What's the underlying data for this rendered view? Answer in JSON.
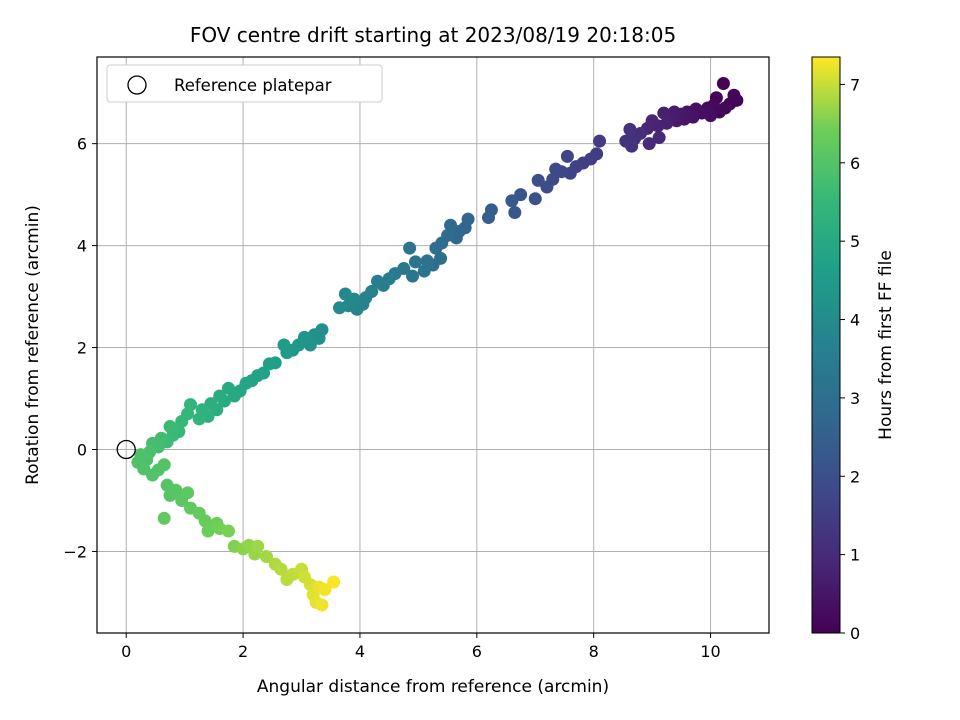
{
  "chart_data": {
    "type": "scatter",
    "title": "FOV centre drift starting at 2023/08/19 20:18:05",
    "xlabel": "Angular distance from reference (arcmin)",
    "ylabel": "Rotation from reference (arcmin)",
    "xlim": [
      -0.5,
      11.0
    ],
    "ylim": [
      -3.6,
      7.7
    ],
    "xticks": [
      0,
      2,
      4,
      6,
      8,
      10
    ],
    "yticks": [
      -2,
      0,
      2,
      4,
      6
    ],
    "grid": true,
    "legend": {
      "position": "top-left",
      "entries": [
        "Reference platepar"
      ]
    },
    "reference_point": {
      "x": 0,
      "y": 0
    },
    "colorbar": {
      "label": "Hours from first FF file",
      "range": [
        0,
        7.35
      ],
      "ticks": [
        0,
        1,
        2,
        3,
        4,
        5,
        6,
        7
      ],
      "colormap": "viridis"
    },
    "points": [
      {
        "x": 10.22,
        "y": 7.18,
        "h": 0.02
      },
      {
        "x": 10.45,
        "y": 6.85,
        "h": 0.05
      },
      {
        "x": 10.33,
        "y": 6.78,
        "h": 0.08
      },
      {
        "x": 10.1,
        "y": 6.9,
        "h": 0.1
      },
      {
        "x": 10.4,
        "y": 6.95,
        "h": 0.12
      },
      {
        "x": 10.25,
        "y": 6.7,
        "h": 0.15
      },
      {
        "x": 10.05,
        "y": 6.75,
        "h": 0.18
      },
      {
        "x": 10.15,
        "y": 6.62,
        "h": 0.2
      },
      {
        "x": 9.95,
        "y": 6.7,
        "h": 0.25
      },
      {
        "x": 9.85,
        "y": 6.6,
        "h": 0.3
      },
      {
        "x": 10.0,
        "y": 6.55,
        "h": 0.33
      },
      {
        "x": 9.75,
        "y": 6.68,
        "h": 0.36
      },
      {
        "x": 9.7,
        "y": 6.52,
        "h": 0.4
      },
      {
        "x": 9.6,
        "y": 6.62,
        "h": 0.45
      },
      {
        "x": 9.55,
        "y": 6.48,
        "h": 0.5
      },
      {
        "x": 9.5,
        "y": 6.58,
        "h": 0.55
      },
      {
        "x": 9.42,
        "y": 6.45,
        "h": 0.6
      },
      {
        "x": 9.38,
        "y": 6.62,
        "h": 0.64
      },
      {
        "x": 9.3,
        "y": 6.5,
        "h": 0.68
      },
      {
        "x": 9.2,
        "y": 6.6,
        "h": 0.72
      },
      {
        "x": 9.25,
        "y": 6.4,
        "h": 0.76
      },
      {
        "x": 9.1,
        "y": 6.35,
        "h": 0.8
      },
      {
        "x": 9.0,
        "y": 6.45,
        "h": 0.85
      },
      {
        "x": 8.92,
        "y": 6.3,
        "h": 0.9
      },
      {
        "x": 9.12,
        "y": 6.12,
        "h": 0.95
      },
      {
        "x": 8.95,
        "y": 6.0,
        "h": 1.0
      },
      {
        "x": 8.8,
        "y": 6.2,
        "h": 1.05
      },
      {
        "x": 8.7,
        "y": 6.1,
        "h": 1.1
      },
      {
        "x": 8.62,
        "y": 6.28,
        "h": 1.15
      },
      {
        "x": 8.55,
        "y": 6.05,
        "h": 1.2
      },
      {
        "x": 8.65,
        "y": 5.95,
        "h": 1.25
      },
      {
        "x": 8.1,
        "y": 6.05,
        "h": 1.4
      },
      {
        "x": 8.05,
        "y": 5.8,
        "h": 1.45
      },
      {
        "x": 7.95,
        "y": 5.7,
        "h": 1.5
      },
      {
        "x": 7.82,
        "y": 5.62,
        "h": 1.55
      },
      {
        "x": 7.7,
        "y": 5.55,
        "h": 1.62
      },
      {
        "x": 7.6,
        "y": 5.42,
        "h": 1.68
      },
      {
        "x": 7.55,
        "y": 5.75,
        "h": 1.72
      },
      {
        "x": 7.45,
        "y": 5.45,
        "h": 1.78
      },
      {
        "x": 7.35,
        "y": 5.5,
        "h": 1.82
      },
      {
        "x": 7.3,
        "y": 5.3,
        "h": 1.88
      },
      {
        "x": 7.2,
        "y": 5.15,
        "h": 1.95
      },
      {
        "x": 7.05,
        "y": 5.28,
        "h": 2.0
      },
      {
        "x": 7.0,
        "y": 4.92,
        "h": 2.08
      },
      {
        "x": 6.75,
        "y": 5.0,
        "h": 2.2
      },
      {
        "x": 6.65,
        "y": 4.65,
        "h": 2.25
      },
      {
        "x": 6.6,
        "y": 4.88,
        "h": 2.3
      },
      {
        "x": 6.25,
        "y": 4.7,
        "h": 2.45
      },
      {
        "x": 6.2,
        "y": 4.55,
        "h": 2.5
      },
      {
        "x": 5.85,
        "y": 4.52,
        "h": 2.65
      },
      {
        "x": 5.8,
        "y": 4.35,
        "h": 2.7
      },
      {
        "x": 5.7,
        "y": 4.28,
        "h": 2.75
      },
      {
        "x": 5.65,
        "y": 4.15,
        "h": 2.8
      },
      {
        "x": 5.55,
        "y": 4.4,
        "h": 2.85
      },
      {
        "x": 5.5,
        "y": 4.2,
        "h": 2.88
      },
      {
        "x": 5.4,
        "y": 4.05,
        "h": 2.92
      },
      {
        "x": 5.3,
        "y": 3.95,
        "h": 2.96
      },
      {
        "x": 5.38,
        "y": 3.75,
        "h": 3.0
      },
      {
        "x": 5.25,
        "y": 3.62,
        "h": 3.05
      },
      {
        "x": 5.15,
        "y": 3.7,
        "h": 3.1
      },
      {
        "x": 5.1,
        "y": 3.5,
        "h": 3.15
      },
      {
        "x": 4.95,
        "y": 3.68,
        "h": 3.18
      },
      {
        "x": 4.9,
        "y": 3.4,
        "h": 3.22
      },
      {
        "x": 4.85,
        "y": 3.95,
        "h": 3.25
      },
      {
        "x": 4.75,
        "y": 3.55,
        "h": 3.3
      },
      {
        "x": 4.6,
        "y": 3.45,
        "h": 3.4
      },
      {
        "x": 4.5,
        "y": 3.35,
        "h": 3.45
      },
      {
        "x": 4.4,
        "y": 3.22,
        "h": 3.5
      },
      {
        "x": 4.3,
        "y": 3.3,
        "h": 3.55
      },
      {
        "x": 4.2,
        "y": 3.1,
        "h": 3.62
      },
      {
        "x": 4.1,
        "y": 2.98,
        "h": 3.68
      },
      {
        "x": 4.05,
        "y": 2.85,
        "h": 3.72
      },
      {
        "x": 3.95,
        "y": 2.75,
        "h": 3.78
      },
      {
        "x": 3.9,
        "y": 2.95,
        "h": 3.82
      },
      {
        "x": 3.8,
        "y": 2.82,
        "h": 3.88
      },
      {
        "x": 3.75,
        "y": 3.05,
        "h": 3.92
      },
      {
        "x": 3.65,
        "y": 2.78,
        "h": 3.98
      },
      {
        "x": 3.35,
        "y": 2.35,
        "h": 4.1
      },
      {
        "x": 3.3,
        "y": 2.18,
        "h": 4.15
      },
      {
        "x": 3.22,
        "y": 2.25,
        "h": 4.18
      },
      {
        "x": 3.15,
        "y": 2.05,
        "h": 4.25
      },
      {
        "x": 3.05,
        "y": 2.2,
        "h": 4.3
      },
      {
        "x": 2.95,
        "y": 2.05,
        "h": 4.35
      },
      {
        "x": 2.85,
        "y": 1.95,
        "h": 4.42
      },
      {
        "x": 2.75,
        "y": 1.9,
        "h": 4.48
      },
      {
        "x": 2.7,
        "y": 2.05,
        "h": 4.52
      },
      {
        "x": 2.55,
        "y": 1.7,
        "h": 4.6
      },
      {
        "x": 2.45,
        "y": 1.68,
        "h": 4.65
      },
      {
        "x": 2.35,
        "y": 1.5,
        "h": 4.7
      },
      {
        "x": 2.25,
        "y": 1.45,
        "h": 4.75
      },
      {
        "x": 2.15,
        "y": 1.35,
        "h": 4.8
      },
      {
        "x": 2.05,
        "y": 1.3,
        "h": 4.85
      },
      {
        "x": 1.95,
        "y": 1.15,
        "h": 4.9
      },
      {
        "x": 1.85,
        "y": 1.05,
        "h": 4.95
      },
      {
        "x": 1.75,
        "y": 1.2,
        "h": 5.0
      },
      {
        "x": 1.68,
        "y": 0.95,
        "h": 5.05
      },
      {
        "x": 1.6,
        "y": 1.05,
        "h": 5.1
      },
      {
        "x": 1.55,
        "y": 0.78,
        "h": 5.15
      },
      {
        "x": 1.45,
        "y": 0.9,
        "h": 5.2
      },
      {
        "x": 1.4,
        "y": 0.65,
        "h": 5.25
      },
      {
        "x": 1.3,
        "y": 0.78,
        "h": 5.3
      },
      {
        "x": 1.25,
        "y": 0.6,
        "h": 5.35
      },
      {
        "x": 1.1,
        "y": 0.88,
        "h": 5.4
      },
      {
        "x": 1.05,
        "y": 0.7,
        "h": 5.45
      },
      {
        "x": 0.95,
        "y": 0.55,
        "h": 5.5
      },
      {
        "x": 0.9,
        "y": 0.35,
        "h": 5.55
      },
      {
        "x": 0.8,
        "y": 0.28,
        "h": 5.6
      },
      {
        "x": 0.75,
        "y": 0.45,
        "h": 5.62
      },
      {
        "x": 0.7,
        "y": 0.15,
        "h": 5.65
      },
      {
        "x": 0.6,
        "y": 0.22,
        "h": 5.7
      },
      {
        "x": 0.55,
        "y": 0.05,
        "h": 5.75
      },
      {
        "x": 0.45,
        "y": 0.12,
        "h": 5.8
      },
      {
        "x": 0.4,
        "y": -0.05,
        "h": 5.85
      },
      {
        "x": 0.35,
        "y": -0.2,
        "h": 5.88
      },
      {
        "x": 0.25,
        "y": -0.1,
        "h": 5.9
      },
      {
        "x": 0.2,
        "y": -0.25,
        "h": 5.92
      },
      {
        "x": 0.3,
        "y": -0.38,
        "h": 5.95
      },
      {
        "x": 0.45,
        "y": -0.5,
        "h": 5.97
      },
      {
        "x": 0.55,
        "y": -0.4,
        "h": 5.98
      },
      {
        "x": 0.65,
        "y": -0.3,
        "h": 6.0
      },
      {
        "x": 0.7,
        "y": -0.7,
        "h": 6.02
      },
      {
        "x": 0.75,
        "y": -0.9,
        "h": 6.05
      },
      {
        "x": 0.85,
        "y": -0.8,
        "h": 6.08
      },
      {
        "x": 0.95,
        "y": -1.0,
        "h": 6.12
      },
      {
        "x": 1.05,
        "y": -0.85,
        "h": 6.15
      },
      {
        "x": 1.1,
        "y": -1.15,
        "h": 6.2
      },
      {
        "x": 0.65,
        "y": -1.35,
        "h": 6.22
      },
      {
        "x": 1.25,
        "y": -1.25,
        "h": 6.28
      },
      {
        "x": 1.35,
        "y": -1.4,
        "h": 6.32
      },
      {
        "x": 1.4,
        "y": -1.6,
        "h": 6.36
      },
      {
        "x": 1.55,
        "y": -1.45,
        "h": 6.4
      },
      {
        "x": 1.6,
        "y": -1.55,
        "h": 6.45
      },
      {
        "x": 1.75,
        "y": -1.6,
        "h": 6.5
      },
      {
        "x": 1.85,
        "y": -1.9,
        "h": 6.55
      },
      {
        "x": 2.0,
        "y": -1.95,
        "h": 6.62
      },
      {
        "x": 2.1,
        "y": -1.88,
        "h": 6.66
      },
      {
        "x": 2.2,
        "y": -2.05,
        "h": 6.7
      },
      {
        "x": 2.25,
        "y": -1.9,
        "h": 6.74
      },
      {
        "x": 2.4,
        "y": -2.1,
        "h": 6.78
      },
      {
        "x": 2.55,
        "y": -2.25,
        "h": 6.84
      },
      {
        "x": 2.65,
        "y": -2.35,
        "h": 6.88
      },
      {
        "x": 2.75,
        "y": -2.55,
        "h": 6.92
      },
      {
        "x": 2.85,
        "y": -2.45,
        "h": 6.96
      },
      {
        "x": 3.0,
        "y": -2.35,
        "h": 7.0
      },
      {
        "x": 3.05,
        "y": -2.5,
        "h": 7.05
      },
      {
        "x": 3.15,
        "y": -2.65,
        "h": 7.1
      },
      {
        "x": 3.2,
        "y": -2.85,
        "h": 7.15
      },
      {
        "x": 3.25,
        "y": -3.0,
        "h": 7.2
      },
      {
        "x": 3.3,
        "y": -2.7,
        "h": 7.22
      },
      {
        "x": 3.35,
        "y": -3.05,
        "h": 7.25
      },
      {
        "x": 3.4,
        "y": -2.75,
        "h": 7.28
      },
      {
        "x": 3.55,
        "y": -2.6,
        "h": 7.32
      }
    ]
  }
}
